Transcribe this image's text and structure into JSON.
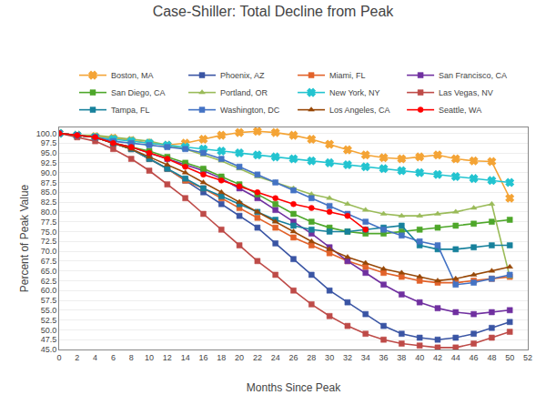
{
  "chart_data": {
    "type": "line",
    "title": "Case-Shiller: Total Decline from Peak",
    "xlabel": "Months Since Peak",
    "ylabel": "Percent of Peak Value",
    "xlim": [
      0,
      52
    ],
    "ylim": [
      45.0,
      101.5
    ],
    "xticks": [
      0,
      2,
      4,
      6,
      8,
      10,
      12,
      14,
      16,
      18,
      20,
      22,
      24,
      26,
      28,
      30,
      32,
      34,
      36,
      38,
      40,
      42,
      44,
      46,
      48,
      50,
      52
    ],
    "yticks": [
      {
        "value": 45,
        "label": "45.0"
      },
      47.5,
      {
        "value": 50,
        "label": "50.0"
      },
      52.5,
      {
        "value": 55,
        "label": "55.0"
      },
      57.5,
      {
        "value": 60,
        "label": "60.0"
      },
      62.5,
      {
        "value": 65,
        "label": "65.0"
      },
      67.5,
      {
        "value": 70,
        "label": "70.0"
      },
      72.5,
      {
        "value": 75,
        "label": "75.0"
      },
      77.5,
      {
        "value": 80,
        "label": "80.0"
      },
      82.5,
      {
        "value": 85,
        "label": "85.0"
      },
      87.5,
      {
        "value": 90,
        "label": "90.0"
      },
      92.5,
      {
        "value": 95,
        "label": "95.0"
      },
      97.5,
      {
        "value": 100,
        "label": "100.0"
      }
    ],
    "grid": "y",
    "legend": "top",
    "series": [
      {
        "name": "Boston, MA",
        "color": "#F4A436",
        "marker": "x",
        "x": [
          0,
          2,
          4,
          6,
          8,
          10,
          12,
          14,
          16,
          18,
          20,
          22,
          24,
          26,
          28,
          30,
          32,
          34,
          36,
          38,
          40,
          42,
          44,
          46,
          48,
          50
        ],
        "values": [
          100,
          99.5,
          99.2,
          98.8,
          98.2,
          97.5,
          97.0,
          97.5,
          98.5,
          99.5,
          100.2,
          100.5,
          100.2,
          99.5,
          98.5,
          97.2,
          95.8,
          94.5,
          93.8,
          93.5,
          94.0,
          94.5,
          93.5,
          93.0,
          92.8,
          83.5
        ]
      },
      {
        "name": "Phoenix, AZ",
        "color": "#3A55A4",
        "marker": "square",
        "x": [
          0,
          2,
          4,
          6,
          8,
          10,
          12,
          14,
          16,
          18,
          20,
          22,
          24,
          26,
          28,
          30,
          32,
          34,
          36,
          38,
          40,
          42,
          44,
          46,
          48,
          50
        ],
        "values": [
          100,
          99.5,
          99,
          97.5,
          96,
          93.5,
          91,
          88,
          85,
          82,
          79,
          76,
          72,
          68,
          64,
          60,
          57,
          54,
          51,
          49,
          48,
          47.5,
          48,
          49,
          50.5,
          52
        ]
      },
      {
        "name": "Miami, FL",
        "color": "#E2622A",
        "marker": "square",
        "x": [
          0,
          2,
          4,
          6,
          8,
          10,
          12,
          14,
          16,
          18,
          20,
          22,
          24,
          26,
          28,
          30,
          32,
          34,
          36,
          38,
          40,
          42,
          44,
          46,
          48,
          50
        ],
        "values": [
          100,
          99.5,
          99,
          97.5,
          96,
          93.5,
          91,
          88,
          86,
          83.5,
          81,
          78.5,
          76,
          73.5,
          71.5,
          69.5,
          67.5,
          66,
          64.5,
          63.5,
          62.5,
          62,
          62,
          62.5,
          63,
          63.5
        ]
      },
      {
        "name": "San Francisco, CA",
        "color": "#7030A0",
        "marker": "square",
        "x": [
          0,
          2,
          4,
          6,
          8,
          10,
          12,
          14,
          16,
          18,
          20,
          22,
          24,
          26,
          28,
          30,
          32,
          34,
          36,
          38,
          40,
          42,
          44,
          46,
          48,
          50
        ],
        "values": [
          100,
          99.5,
          99,
          97.5,
          96.5,
          95,
          93.5,
          92,
          90.5,
          88.5,
          86,
          83.5,
          80.5,
          77.5,
          74.5,
          71,
          67.5,
          64.5,
          61.5,
          59,
          57,
          55.5,
          54.5,
          54,
          54.5,
          55
        ]
      },
      {
        "name": "San Diego, CA",
        "color": "#4EA72A",
        "marker": "square",
        "x": [
          0,
          2,
          4,
          6,
          8,
          10,
          12,
          14,
          16,
          18,
          20,
          22,
          24,
          26,
          28,
          30,
          32,
          34,
          36,
          38,
          40,
          42,
          44,
          46,
          48,
          50
        ],
        "values": [
          100,
          99.5,
          99,
          97.5,
          96.5,
          95.5,
          94,
          92.5,
          91,
          89,
          87,
          84.5,
          82,
          79.5,
          77.5,
          76,
          75,
          74.5,
          74.5,
          75,
          75.5,
          76,
          76.5,
          77,
          77.5,
          78
        ]
      },
      {
        "name": "Portland, OR",
        "color": "#9ABB59",
        "marker": "triangle-up",
        "x": [
          0,
          2,
          4,
          6,
          8,
          10,
          12,
          14,
          16,
          18,
          20,
          22,
          24,
          26,
          28,
          30,
          32,
          34,
          36,
          38,
          40,
          42,
          44,
          46,
          48,
          50
        ],
        "values": [
          100,
          99.5,
          99.5,
          99,
          98.5,
          98,
          97,
          96,
          94.5,
          93,
          91,
          89,
          87.5,
          86,
          84.5,
          83.5,
          82,
          80.5,
          79.5,
          79,
          79,
          79.5,
          80,
          81,
          82,
          63.5
        ]
      },
      {
        "name": "New York, NY",
        "color": "#23C4D0",
        "marker": "x",
        "x": [
          0,
          2,
          4,
          6,
          8,
          10,
          12,
          14,
          16,
          18,
          20,
          22,
          24,
          26,
          28,
          30,
          32,
          34,
          36,
          38,
          40,
          42,
          44,
          46,
          48,
          50
        ],
        "values": [
          100,
          99.5,
          99,
          98.5,
          98,
          97.5,
          97,
          96.5,
          96,
          95.5,
          95,
          94.5,
          94,
          93.5,
          93,
          92.5,
          92,
          91.5,
          91,
          90.5,
          90,
          89.5,
          89,
          88.5,
          88,
          87.5
        ]
      },
      {
        "name": "Las Vegas, NV",
        "color": "#BE4B48",
        "marker": "square",
        "x": [
          0,
          2,
          4,
          6,
          8,
          10,
          12,
          14,
          16,
          18,
          20,
          22,
          24,
          26,
          28,
          30,
          32,
          34,
          36,
          38,
          40,
          42,
          44,
          46,
          48,
          50
        ],
        "values": [
          100,
          99,
          98,
          96,
          93.5,
          90.5,
          87,
          83.5,
          79.5,
          75.5,
          71.5,
          67.5,
          64,
          60,
          56.5,
          53.5,
          51,
          49,
          47.5,
          46.5,
          46,
          45.5,
          45.5,
          46.5,
          48,
          49.5
        ]
      },
      {
        "name": "Tampa, FL",
        "color": "#17819C",
        "marker": "square",
        "x": [
          0,
          2,
          4,
          6,
          8,
          10,
          12,
          14,
          16,
          18,
          20,
          22,
          24,
          26,
          28,
          30,
          32,
          34,
          36,
          38,
          40,
          42,
          44,
          46,
          48,
          50
        ],
        "values": [
          100,
          99.5,
          99,
          97.5,
          96,
          93.5,
          91,
          88.5,
          86,
          84,
          82,
          80,
          78,
          76.5,
          75.5,
          75,
          75,
          75.5,
          76,
          76.5,
          71.5,
          70.5,
          70.5,
          71,
          71.5,
          71.5
        ]
      },
      {
        "name": "Washington, DC",
        "color": "#4473C4",
        "marker": "square",
        "x": [
          0,
          2,
          4,
          6,
          8,
          10,
          12,
          14,
          16,
          18,
          20,
          22,
          24,
          26,
          28,
          30,
          32,
          34,
          36,
          38,
          40,
          42,
          44,
          46,
          48,
          50
        ],
        "values": [
          100,
          99.5,
          99,
          98,
          97.5,
          97,
          96.5,
          96,
          95,
          93.5,
          91.5,
          89.5,
          87.5,
          85.5,
          83.5,
          81.5,
          79.5,
          77.5,
          75.5,
          74,
          72.5,
          71.5,
          61.5,
          62,
          63,
          64
        ]
      },
      {
        "name": "Los Angeles, CA",
        "color": "#974706",
        "marker": "triangle-up",
        "x": [
          0,
          2,
          4,
          6,
          8,
          10,
          12,
          14,
          16,
          18,
          20,
          22,
          24,
          26,
          28,
          30,
          32,
          34,
          36,
          38,
          40,
          42,
          44,
          46,
          48,
          50
        ],
        "values": [
          100,
          99.5,
          99,
          97.5,
          96,
          94,
          92,
          90,
          87.5,
          85,
          82.5,
          80,
          77.5,
          75,
          72.5,
          70.5,
          68.5,
          67,
          65.5,
          64.5,
          63.5,
          62.5,
          63,
          64,
          65,
          66
        ]
      },
      {
        "name": "Seattle, WA",
        "color": "#FF0000",
        "marker": "circle",
        "x": [
          0,
          2,
          4,
          6,
          8,
          10,
          12,
          14,
          16,
          18,
          20,
          22,
          24,
          26,
          28,
          30,
          32,
          34
        ],
        "values": [
          100,
          99.5,
          99,
          97.5,
          96.5,
          95,
          93.5,
          91.5,
          89.5,
          88,
          86.5,
          85,
          83.5,
          82,
          81,
          80,
          79,
          75.5
        ]
      }
    ]
  }
}
